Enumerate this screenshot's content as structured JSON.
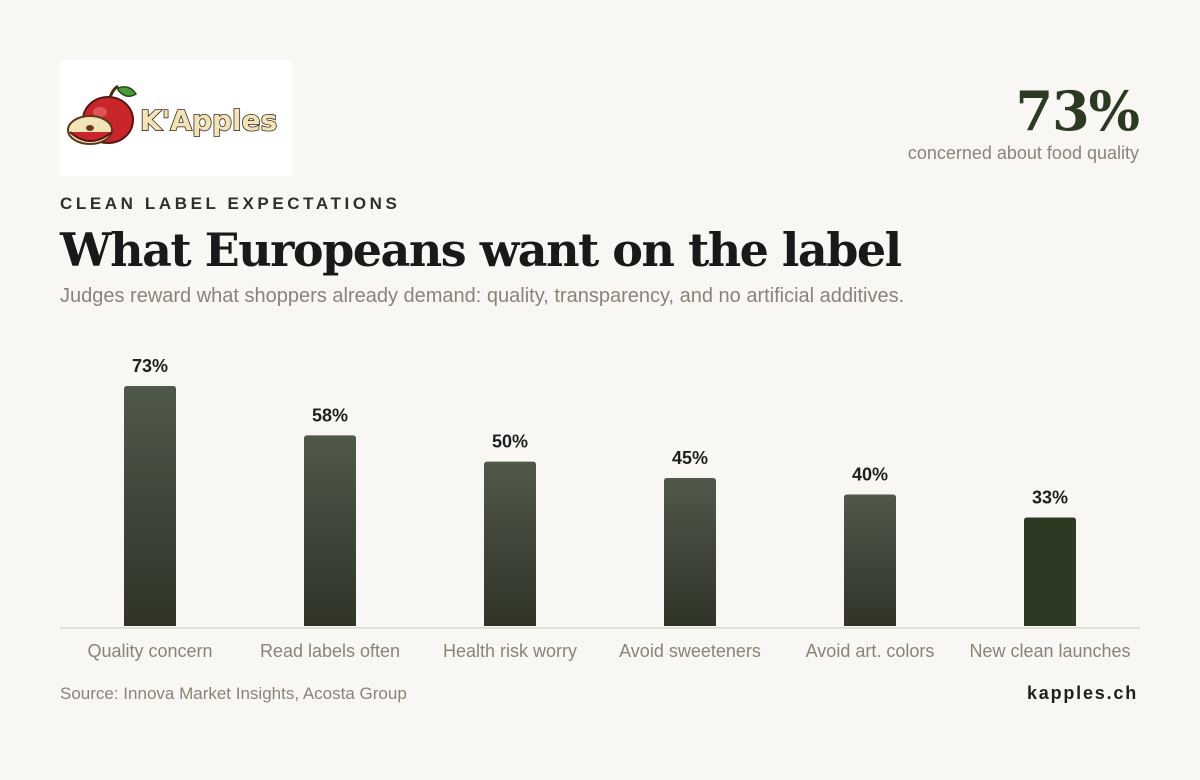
{
  "brand": {
    "logo_text": "K'Apples",
    "website": "kapples.ch"
  },
  "headline_stat": {
    "value": "73%",
    "caption": "concerned about food quality"
  },
  "eyebrow": "CLEAN LABEL EXPECTATIONS",
  "title": "What Europeans want on the label",
  "subtitle": "Judges reward what shoppers already demand: quality, transparency, and no artificial additives.",
  "source": "Source: Innova Market Insights, Acosta Group",
  "colors": {
    "background": "#f8f7f3",
    "bar_top": "#50584a",
    "bar_bottom": "#2f3427",
    "bar_highlight": "#2c3a24",
    "muted_text": "#8c8378"
  },
  "chart_data": {
    "type": "bar",
    "categories": [
      "Quality concern",
      "Read labels often",
      "Health risk worry",
      "Avoid sweeteners",
      "Avoid art. colors",
      "New clean launches"
    ],
    "values": [
      73,
      58,
      50,
      45,
      40,
      33
    ],
    "data_labels": [
      "73%",
      "58%",
      "50%",
      "45%",
      "40%",
      "33%"
    ],
    "unit": "%",
    "ylim": [
      0,
      73
    ],
    "grid": false,
    "legend": "none"
  }
}
